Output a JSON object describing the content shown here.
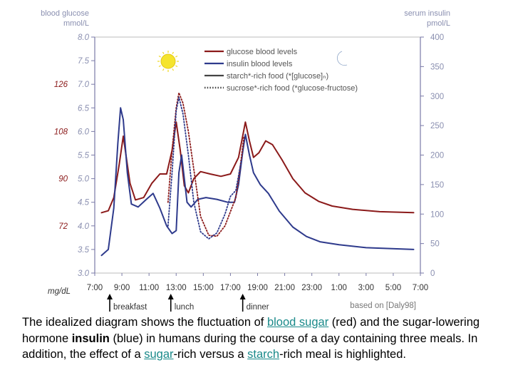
{
  "chart_data": {
    "type": "line",
    "ylabel_left": [
      "blood glucose",
      "mmol/L"
    ],
    "ylabel_right": [
      "serum insulin",
      "pmol/L"
    ],
    "left_unit_mgdl": "mg/dL",
    "ylim_left": [
      3.0,
      8.0
    ],
    "ylim_right": [
      0,
      400
    ],
    "yticks_left": [
      "3.0",
      "3.5",
      "4.0",
      "4.5",
      "5.0",
      "5.5",
      "6.0",
      "6.5",
      "7.0",
      "7.5",
      "8.0"
    ],
    "yticks_right": [
      "0",
      "50",
      "100",
      "150",
      "200",
      "250",
      "300",
      "350",
      "400"
    ],
    "mgdl_ticks": [
      {
        "label": "72",
        "at": 4.0
      },
      {
        "label": "90",
        "at": 5.0
      },
      {
        "label": "108",
        "at": 6.0
      },
      {
        "label": "126",
        "at": 7.0
      }
    ],
    "x_hours": [
      7,
      9,
      11,
      13,
      15,
      17,
      19,
      21,
      23,
      25,
      27,
      29,
      31
    ],
    "xticks": [
      "7:00",
      "9:00",
      "11:00",
      "13:00",
      "15:00",
      "17:00",
      "19:00",
      "21:00",
      "23:00",
      "1:00",
      "3:00",
      "5:00",
      "7:00"
    ],
    "meals": [
      {
        "label": "breakfast",
        "hour": 8.0
      },
      {
        "label": "lunch",
        "hour": 12.5
      },
      {
        "label": "dinner",
        "hour": 17.8
      }
    ],
    "source_note": "based on [Daly98]",
    "legend": [
      {
        "label": "glucose blood levels",
        "color": "#8b1a1a",
        "style": "solid"
      },
      {
        "label": "insulin blood levels",
        "color": "#2e3a8c",
        "style": "solid"
      },
      {
        "label": "starch*-rich food (*[glucose]ₙ)",
        "color": "#444444",
        "style": "solid"
      },
      {
        "label": "sucrose*-rich food (*glucose-fructose)",
        "color": "#444444",
        "style": "dotted"
      }
    ],
    "series": [
      {
        "kind": "glucose-starch",
        "color": "#8b1a1a",
        "dash": false,
        "axis": "left",
        "points": [
          [
            7.5,
            4.28
          ],
          [
            8.0,
            4.32
          ],
          [
            8.4,
            4.6
          ],
          [
            8.8,
            5.3
          ],
          [
            9.1,
            5.9
          ],
          [
            9.3,
            5.5
          ],
          [
            9.6,
            4.9
          ],
          [
            10.0,
            4.55
          ],
          [
            10.6,
            4.6
          ],
          [
            11.2,
            4.9
          ],
          [
            11.8,
            5.1
          ],
          [
            12.3,
            5.1
          ],
          [
            12.7,
            5.6
          ],
          [
            13.0,
            6.2
          ],
          [
            13.3,
            5.6
          ],
          [
            13.6,
            4.85
          ],
          [
            13.9,
            4.7
          ],
          [
            14.3,
            5.0
          ],
          [
            14.8,
            5.15
          ],
          [
            15.5,
            5.1
          ],
          [
            16.3,
            5.05
          ],
          [
            17.0,
            5.1
          ],
          [
            17.6,
            5.45
          ],
          [
            17.9,
            5.9
          ],
          [
            18.1,
            6.2
          ],
          [
            18.4,
            5.8
          ],
          [
            18.7,
            5.45
          ],
          [
            19.1,
            5.55
          ],
          [
            19.6,
            5.8
          ],
          [
            20.1,
            5.72
          ],
          [
            20.8,
            5.4
          ],
          [
            21.6,
            5.0
          ],
          [
            22.5,
            4.7
          ],
          [
            23.5,
            4.52
          ],
          [
            24.5,
            4.42
          ],
          [
            26.0,
            4.35
          ],
          [
            28.0,
            4.3
          ],
          [
            30.5,
            4.28
          ]
        ]
      },
      {
        "kind": "insulin-starch",
        "color": "#2e3a8c",
        "dash": false,
        "axis": "right",
        "points": [
          [
            7.5,
            30
          ],
          [
            8.0,
            40
          ],
          [
            8.4,
            110
          ],
          [
            8.7,
            220
          ],
          [
            8.9,
            280
          ],
          [
            9.1,
            260
          ],
          [
            9.4,
            170
          ],
          [
            9.7,
            117
          ],
          [
            10.2,
            112
          ],
          [
            10.8,
            125
          ],
          [
            11.3,
            135
          ],
          [
            11.8,
            110
          ],
          [
            12.3,
            80
          ],
          [
            12.7,
            67
          ],
          [
            13.0,
            72
          ],
          [
            13.2,
            170
          ],
          [
            13.4,
            200
          ],
          [
            13.6,
            160
          ],
          [
            13.8,
            120
          ],
          [
            14.1,
            112
          ],
          [
            14.6,
            125
          ],
          [
            15.2,
            128
          ],
          [
            16.0,
            125
          ],
          [
            16.8,
            120
          ],
          [
            17.3,
            120
          ],
          [
            17.6,
            150
          ],
          [
            17.9,
            205
          ],
          [
            18.1,
            235
          ],
          [
            18.4,
            200
          ],
          [
            18.7,
            170
          ],
          [
            19.2,
            150
          ],
          [
            19.8,
            135
          ],
          [
            20.6,
            105
          ],
          [
            21.6,
            78
          ],
          [
            22.6,
            62
          ],
          [
            23.6,
            53
          ],
          [
            25.0,
            48
          ],
          [
            27.0,
            43
          ],
          [
            30.5,
            40
          ]
        ]
      },
      {
        "kind": "glucose-sucrose",
        "color": "#8b1a1a",
        "dash": true,
        "axis": "left",
        "points": [
          [
            12.4,
            4.5
          ],
          [
            12.7,
            5.6
          ],
          [
            13.0,
            6.5
          ],
          [
            13.2,
            6.82
          ],
          [
            13.5,
            6.6
          ],
          [
            13.9,
            6.0
          ],
          [
            14.3,
            5.2
          ],
          [
            14.8,
            4.2
          ],
          [
            15.4,
            3.8
          ],
          [
            16.0,
            3.78
          ],
          [
            16.6,
            4.0
          ],
          [
            17.0,
            4.3
          ],
          [
            17.4,
            4.6
          ],
          [
            17.7,
            5.2
          ],
          [
            18.0,
            5.9
          ]
        ]
      },
      {
        "kind": "insulin-sucrose",
        "color": "#2e3a8c",
        "dash": true,
        "axis": "right",
        "points": [
          [
            12.4,
            80
          ],
          [
            12.7,
            170
          ],
          [
            13.0,
            275
          ],
          [
            13.2,
            298
          ],
          [
            13.5,
            270
          ],
          [
            13.9,
            200
          ],
          [
            14.3,
            120
          ],
          [
            14.8,
            70
          ],
          [
            15.4,
            58
          ],
          [
            16.0,
            68
          ],
          [
            16.6,
            100
          ],
          [
            17.0,
            130
          ],
          [
            17.4,
            140
          ],
          [
            17.8,
            190
          ]
        ]
      }
    ]
  },
  "caption": {
    "p1": "The idealized diagram shows the fluctuation of ",
    "l1": "blood sugar",
    "p2": " (red) and the sugar-lowering hormone ",
    "b1": "insulin",
    "p3": " (blue) in humans during the course of a day containing three meals. In addition, the effect of a ",
    "l2": "sugar",
    "p4": "-rich versus a ",
    "l3": "starch",
    "p5": "-rich meal is highlighted."
  },
  "icons": {
    "sun": "sun-icon",
    "moon": "moon-icon"
  },
  "colors": {
    "axis": "#7a7aa8",
    "frame": "#bbbbbb",
    "tick_text": "#8a8fb0",
    "mgdl_text": "#8b1a1a"
  }
}
